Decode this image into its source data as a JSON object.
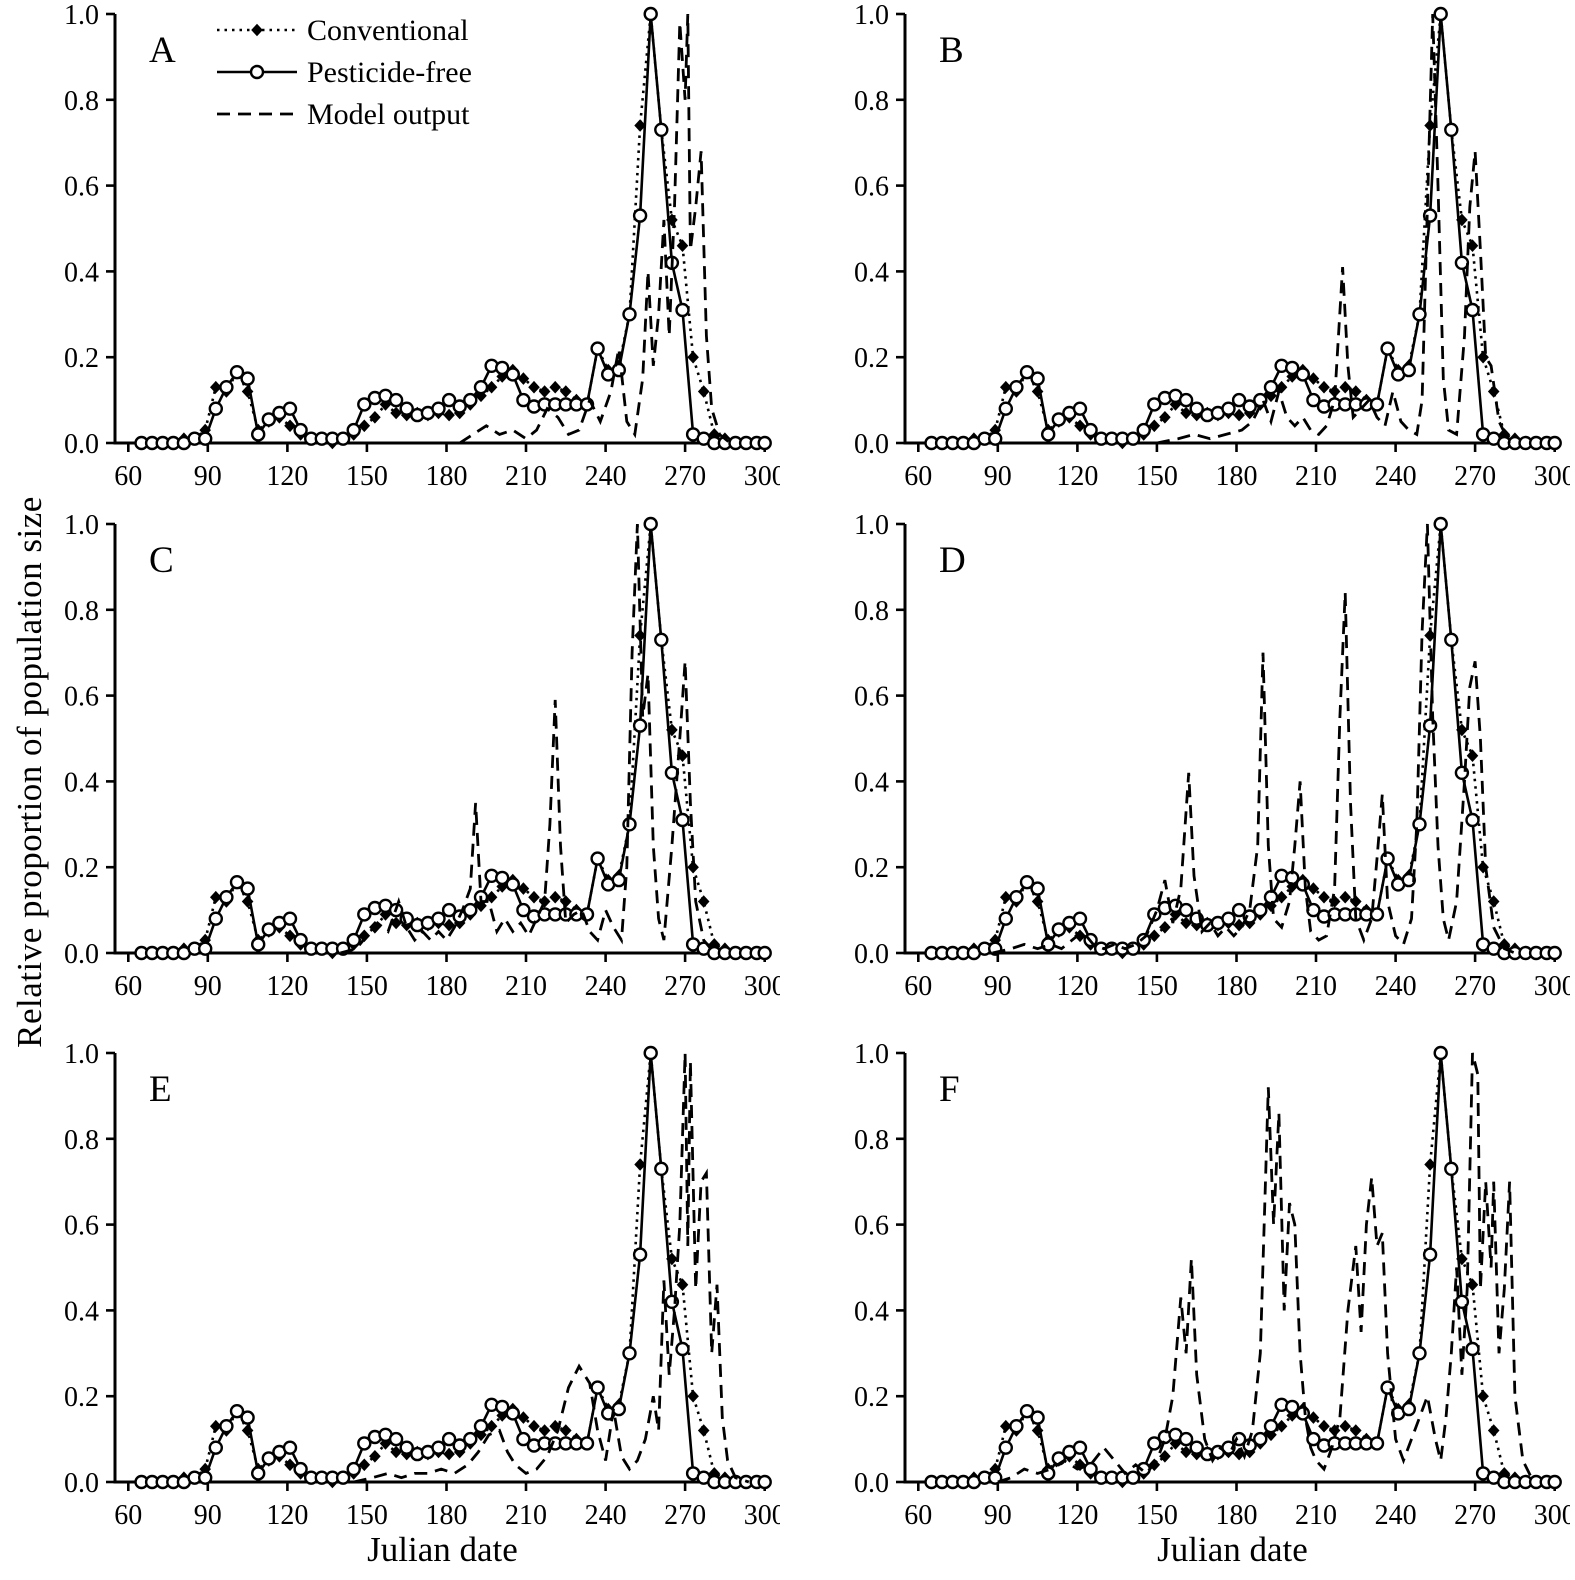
{
  "chart_data": {
    "type": "line",
    "title": "",
    "xlabel": "Julian date",
    "ylabel": "Relative proportion of population size",
    "xlim": [
      55,
      302
    ],
    "ylim": [
      0,
      1.0
    ],
    "xticks": [
      60,
      90,
      120,
      150,
      180,
      210,
      240,
      270,
      300
    ],
    "yticks": [
      0.0,
      0.2,
      0.4,
      0.6,
      0.8,
      1.0
    ],
    "ytick_labels": [
      "0.0",
      "0.2",
      "0.4",
      "0.6",
      "0.8",
      "1.0"
    ],
    "grid": "off",
    "legend_position": "inside-top-left-panel-A",
    "colors": {
      "foreground": "#000000",
      "background": "#ffffff"
    },
    "legend": [
      {
        "label": "Conventional",
        "line": "dotted",
        "marker": "filled-diamond"
      },
      {
        "label": "Pesticide-free",
        "line": "solid",
        "marker": "open-circle"
      },
      {
        "label": "Model output",
        "line": "dashed",
        "marker": "none"
      }
    ],
    "shared_field_series": {
      "x": [
        65,
        69,
        73,
        77,
        81,
        85,
        89,
        93,
        97,
        101,
        105,
        109,
        113,
        117,
        121,
        125,
        129,
        133,
        137,
        141,
        145,
        149,
        153,
        157,
        161,
        165,
        169,
        173,
        177,
        181,
        185,
        189,
        193,
        197,
        201,
        205,
        209,
        213,
        217,
        221,
        225,
        229,
        233,
        237,
        241,
        245,
        249,
        253,
        257,
        261,
        265,
        269,
        273,
        277,
        281,
        285,
        289,
        293,
        297,
        300
      ],
      "conventional": [
        0,
        0,
        0,
        0,
        0.01,
        0.01,
        0.03,
        0.13,
        0.12,
        0.165,
        0.12,
        0.03,
        0.05,
        0.06,
        0.04,
        0.02,
        0.01,
        0.01,
        0,
        0.01,
        0.02,
        0.04,
        0.06,
        0.09,
        0.07,
        0.065,
        0.07,
        0.065,
        0.07,
        0.065,
        0.07,
        0.09,
        0.11,
        0.13,
        0.155,
        0.17,
        0.15,
        0.13,
        0.12,
        0.13,
        0.12,
        0.1,
        0.09,
        0.22,
        0.17,
        0.18,
        0.3,
        0.74,
        1.0,
        0.73,
        0.52,
        0.46,
        0.2,
        0.12,
        0.02,
        0.01,
        0,
        0,
        0,
        0
      ],
      "pesticide_free": [
        0,
        0,
        0,
        0,
        0,
        0.01,
        0.01,
        0.08,
        0.13,
        0.165,
        0.15,
        0.02,
        0.055,
        0.07,
        0.08,
        0.03,
        0.01,
        0.01,
        0.01,
        0.01,
        0.03,
        0.09,
        0.105,
        0.11,
        0.1,
        0.08,
        0.065,
        0.07,
        0.08,
        0.1,
        0.085,
        0.1,
        0.13,
        0.18,
        0.175,
        0.16,
        0.1,
        0.085,
        0.09,
        0.09,
        0.09,
        0.09,
        0.09,
        0.22,
        0.16,
        0.17,
        0.3,
        0.53,
        1.0,
        0.73,
        0.42,
        0.31,
        0.02,
        0.01,
        0,
        0,
        0,
        0,
        0,
        0
      ]
    },
    "panels": [
      {
        "label": "A",
        "model_output": {
          "x": [
            185,
            190,
            195,
            200,
            205,
            210,
            214,
            218,
            222,
            226,
            230,
            234,
            238,
            242,
            245,
            248,
            251,
            254,
            256,
            258,
            260,
            262,
            264,
            266,
            268,
            270,
            271,
            272,
            274,
            276,
            278,
            280,
            283,
            287
          ],
          "y": [
            0,
            0.02,
            0.04,
            0.02,
            0.03,
            0.01,
            0.03,
            0.08,
            0.06,
            0.02,
            0.03,
            0.1,
            0.05,
            0.12,
            0.22,
            0.05,
            0.02,
            0.15,
            0.4,
            0.18,
            0.3,
            0.52,
            0.25,
            0.55,
            0.98,
            0.8,
            1.0,
            0.45,
            0.55,
            0.68,
            0.25,
            0.08,
            0.02,
            0
          ]
        }
      },
      {
        "label": "B",
        "model_output": {
          "x": [
            150,
            158,
            164,
            170,
            176,
            182,
            186,
            190,
            193,
            196,
            199,
            202,
            205,
            208,
            211,
            214,
            217,
            220,
            222,
            224,
            227,
            230,
            233,
            236,
            239,
            242,
            245,
            248,
            250,
            252,
            254,
            256,
            258,
            260,
            263,
            266,
            268,
            270,
            272,
            274,
            276,
            279,
            283
          ],
          "y": [
            0,
            0.01,
            0.02,
            0.01,
            0.02,
            0.03,
            0.05,
            0.1,
            0.05,
            0.12,
            0.06,
            0.04,
            0.06,
            0.03,
            0.02,
            0.04,
            0.1,
            0.41,
            0.18,
            0.06,
            0.08,
            0.1,
            0.06,
            0.04,
            0.12,
            0.05,
            0.03,
            0.02,
            0.1,
            0.55,
            1.0,
            0.6,
            0.15,
            0.03,
            0.02,
            0.25,
            0.55,
            0.68,
            0.45,
            0.2,
            0.18,
            0.05,
            0
          ]
        }
      },
      {
        "label": "C",
        "model_output": {
          "x": [
            140,
            146,
            150,
            154,
            158,
            162,
            165,
            168,
            171,
            174,
            177,
            180,
            183,
            186,
            189,
            191,
            193,
            196,
            199,
            202,
            205,
            208,
            211,
            214,
            217,
            219,
            221,
            223,
            225,
            228,
            231,
            234,
            237,
            240,
            243,
            246,
            248,
            250,
            252,
            254,
            256,
            258,
            260,
            262,
            265,
            268,
            270,
            272,
            274,
            277,
            281
          ],
          "y": [
            0,
            0.01,
            0.04,
            0.07,
            0.05,
            0.12,
            0.06,
            0.03,
            0.05,
            0.03,
            0.05,
            0.03,
            0.06,
            0.1,
            0.15,
            0.35,
            0.12,
            0.12,
            0.05,
            0.08,
            0.05,
            0.07,
            0.04,
            0.08,
            0.12,
            0.3,
            0.59,
            0.25,
            0.07,
            0.09,
            0.1,
            0.05,
            0.03,
            0.1,
            0.06,
            0.03,
            0.2,
            0.7,
            1.0,
            0.55,
            0.65,
            0.25,
            0.08,
            0.03,
            0.25,
            0.5,
            0.68,
            0.35,
            0.12,
            0.03,
            0
          ]
        }
      },
      {
        "label": "D",
        "model_output": {
          "x": [
            88,
            95,
            100,
            105,
            110,
            114,
            118,
            122,
            126,
            130,
            134,
            138,
            142,
            146,
            150,
            153,
            156,
            159,
            162,
            164,
            167,
            170,
            173,
            176,
            179,
            182,
            185,
            188,
            190,
            192,
            194,
            197,
            200,
            202,
            204,
            206,
            208,
            211,
            214,
            217,
            219,
            221,
            223,
            225,
            228,
            231,
            233,
            235,
            237,
            240,
            243,
            246,
            248,
            250,
            252,
            254,
            256,
            258,
            260,
            263,
            266,
            268,
            270,
            272,
            274,
            277,
            281,
            285
          ],
          "y": [
            0,
            0.01,
            0.02,
            0.01,
            0.02,
            0.01,
            0.03,
            0.05,
            0.02,
            0.01,
            0.02,
            0.01,
            0.02,
            0.04,
            0.1,
            0.17,
            0.07,
            0.15,
            0.42,
            0.18,
            0.05,
            0.07,
            0.04,
            0.06,
            0.04,
            0.06,
            0.1,
            0.25,
            0.7,
            0.25,
            0.08,
            0.06,
            0.12,
            0.25,
            0.4,
            0.15,
            0.05,
            0.03,
            0.04,
            0.15,
            0.55,
            0.84,
            0.35,
            0.08,
            0.03,
            0.08,
            0.22,
            0.37,
            0.12,
            0.04,
            0.02,
            0.08,
            0.3,
            0.75,
            1.0,
            0.55,
            0.25,
            0.08,
            0.03,
            0.12,
            0.4,
            0.62,
            0.68,
            0.5,
            0.2,
            0.06,
            0.01,
            0
          ]
        }
      },
      {
        "label": "E",
        "model_output": {
          "x": [
            145,
            152,
            158,
            163,
            168,
            173,
            178,
            183,
            188,
            192,
            196,
            200,
            203,
            206,
            210,
            214,
            218,
            222,
            226,
            230,
            234,
            237,
            240,
            243,
            246,
            249,
            252,
            255,
            258,
            260,
            262,
            264,
            266,
            268,
            270,
            271,
            272,
            274,
            276,
            278,
            280,
            282,
            284,
            286,
            289,
            294
          ],
          "y": [
            0,
            0.01,
            0.02,
            0.01,
            0.02,
            0.02,
            0.03,
            0.02,
            0.04,
            0.07,
            0.11,
            0.12,
            0.07,
            0.04,
            0.02,
            0.03,
            0.06,
            0.12,
            0.22,
            0.27,
            0.23,
            0.12,
            0.05,
            0.17,
            0.06,
            0.03,
            0.05,
            0.1,
            0.2,
            0.12,
            0.47,
            0.25,
            0.4,
            0.6,
            1.0,
            0.55,
            0.98,
            0.45,
            0.7,
            0.72,
            0.3,
            0.46,
            0.15,
            0.05,
            0.01,
            0
          ]
        }
      },
      {
        "label": "F",
        "model_output": {
          "x": [
            90,
            95,
            100,
            105,
            110,
            115,
            120,
            125,
            130,
            134,
            138,
            142,
            146,
            150,
            153,
            156,
            159,
            161,
            163,
            165,
            168,
            171,
            174,
            177,
            180,
            183,
            186,
            189,
            192,
            194,
            196,
            198,
            200,
            202,
            204,
            206,
            208,
            210,
            213,
            216,
            219,
            222,
            225,
            227,
            229,
            231,
            233,
            235,
            237,
            240,
            243,
            246,
            249,
            252,
            255,
            257,
            259,
            261,
            263,
            265,
            267,
            269,
            271,
            272,
            274,
            276,
            277,
            279,
            281,
            283,
            285,
            288,
            292
          ],
          "y": [
            0,
            0.01,
            0.03,
            0.02,
            0.03,
            0.05,
            0.03,
            0.04,
            0.08,
            0.05,
            0.02,
            0.04,
            0.02,
            0.05,
            0.1,
            0.2,
            0.43,
            0.3,
            0.52,
            0.25,
            0.1,
            0.05,
            0.08,
            0.06,
            0.1,
            0.06,
            0.12,
            0.3,
            0.92,
            0.6,
            0.86,
            0.4,
            0.65,
            0.6,
            0.3,
            0.15,
            0.08,
            0.05,
            0.03,
            0.08,
            0.15,
            0.4,
            0.55,
            0.35,
            0.6,
            0.71,
            0.55,
            0.58,
            0.3,
            0.1,
            0.05,
            0.1,
            0.15,
            0.2,
            0.1,
            0.05,
            0.15,
            0.3,
            0.5,
            0.25,
            0.45,
            1.0,
            0.95,
            0.45,
            0.7,
            0.5,
            0.7,
            0.3,
            0.45,
            0.7,
            0.2,
            0.05,
            0
          ]
        }
      }
    ]
  }
}
